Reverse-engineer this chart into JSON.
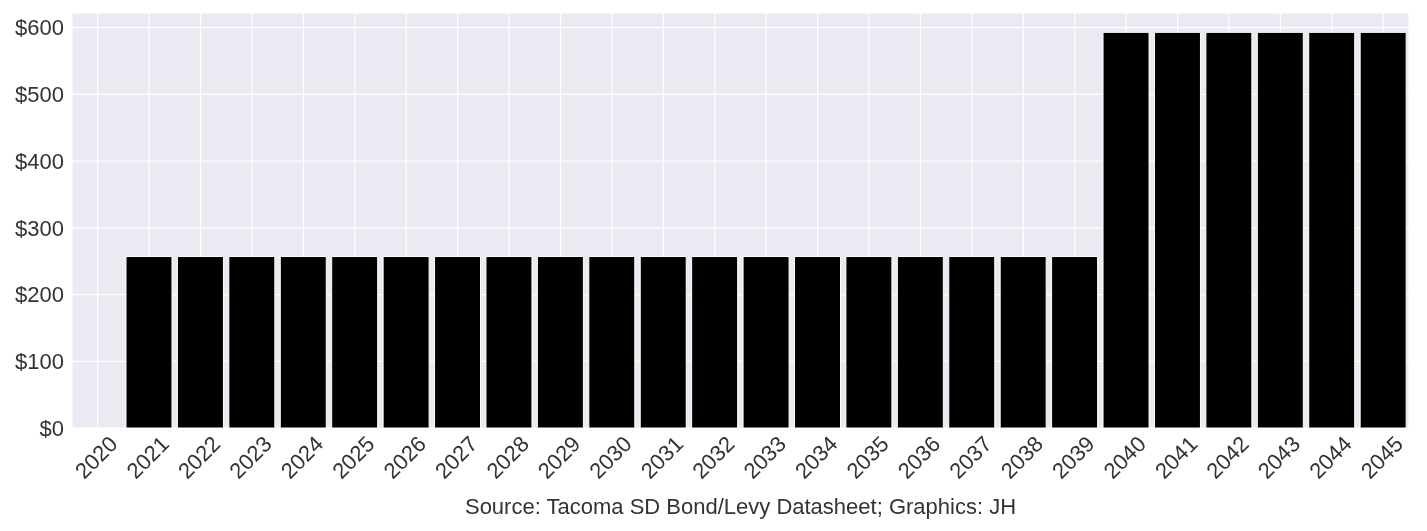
{
  "chart_data": {
    "type": "bar",
    "categories": [
      "2020",
      "2021",
      "2022",
      "2023",
      "2024",
      "2025",
      "2026",
      "2027",
      "2028",
      "2029",
      "2030",
      "2031",
      "2032",
      "2033",
      "2034",
      "2035",
      "2036",
      "2037",
      "2038",
      "2039",
      "2040",
      "2041",
      "2042",
      "2043",
      "2044",
      "2045"
    ],
    "values": [
      null,
      257,
      257,
      257,
      257,
      257,
      257,
      257,
      257,
      257,
      257,
      257,
      257,
      257,
      257,
      257,
      257,
      257,
      257,
      257,
      593,
      593,
      593,
      593,
      593,
      593
    ],
    "color": "#000000",
    "ylim": [
      0,
      622
    ],
    "yticks": [
      {
        "value": 0,
        "label": "$0"
      },
      {
        "value": 100,
        "label": "$100"
      },
      {
        "value": 200,
        "label": "$200"
      },
      {
        "value": 300,
        "label": "$300"
      },
      {
        "value": 400,
        "label": "$400"
      },
      {
        "value": 500,
        "label": "$500"
      },
      {
        "value": 600,
        "label": "$600"
      }
    ],
    "grid": true,
    "annotations": [
      "Source: Tacoma SD Bond/Levy Datasheet; Graphics: JH"
    ]
  }
}
